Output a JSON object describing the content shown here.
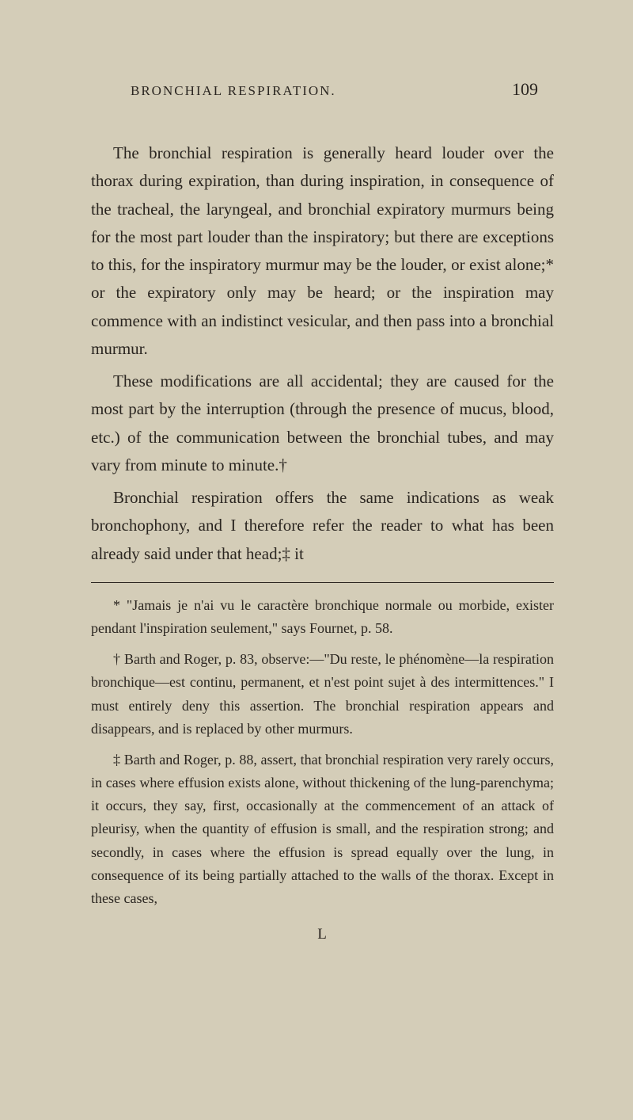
{
  "header": {
    "title": "BRONCHIAL RESPIRATION.",
    "pageNumber": "109"
  },
  "paragraphs": [
    "The bronchial respiration is generally heard louder over the thorax during expiration, than during inspiration, in consequence of the tracheal, the laryngeal, and bronchial expiratory murmurs being for the most part louder than the inspiratory; but there are exceptions to this, for the inspiratory murmur may be the louder, or exist alone;* or the expiratory only may be heard; or the inspiration may commence with an indistinct vesicular, and then pass into a bronchial murmur.",
    "These modifications are all accidental; they are caused for the most part by the interruption (through the presence of mucus, blood, etc.) of the communication between the bronchial tubes, and may vary from minute to minute.†",
    "Bronchial respiration offers the same indications as weak bronchophony, and I therefore refer the reader to what has been already said under that head;‡ it"
  ],
  "footnotes": [
    "* \"Jamais je n'ai vu le caractère bronchique normale ou morbide, exister pendant l'inspiration seulement,\" says Fournet, p. 58.",
    "† Barth and Roger, p. 83, observe:—\"Du reste, le phénomène—la respiration bronchique—est continu, permanent, et n'est point sujet à des intermittences.\" I must entirely deny this assertion. The bronchial respiration appears and disappears, and is replaced by other murmurs.",
    "‡ Barth and Roger, p. 88, assert, that bronchial respiration very rarely occurs, in cases where effusion exists alone, without thickening of the lung-parenchyma; it occurs, they say, first, occasionally at the commencement of an attack of pleurisy, when the quantity of effusion is small, and the respiration strong; and secondly, in cases where the effusion is spread equally over the lung, in consequence of its being partially attached to the walls of the thorax. Except in these cases,"
  ],
  "signature": "L",
  "styling": {
    "backgroundColor": "#d4cdb8",
    "textColor": "#2a2520",
    "bodyFontSize": 21,
    "footnoteFontSize": 18,
    "headerFontSize": 17,
    "pageNumberFontSize": 22,
    "lineHeight": 1.68,
    "pageWidth": 800,
    "pageHeight": 1414
  }
}
